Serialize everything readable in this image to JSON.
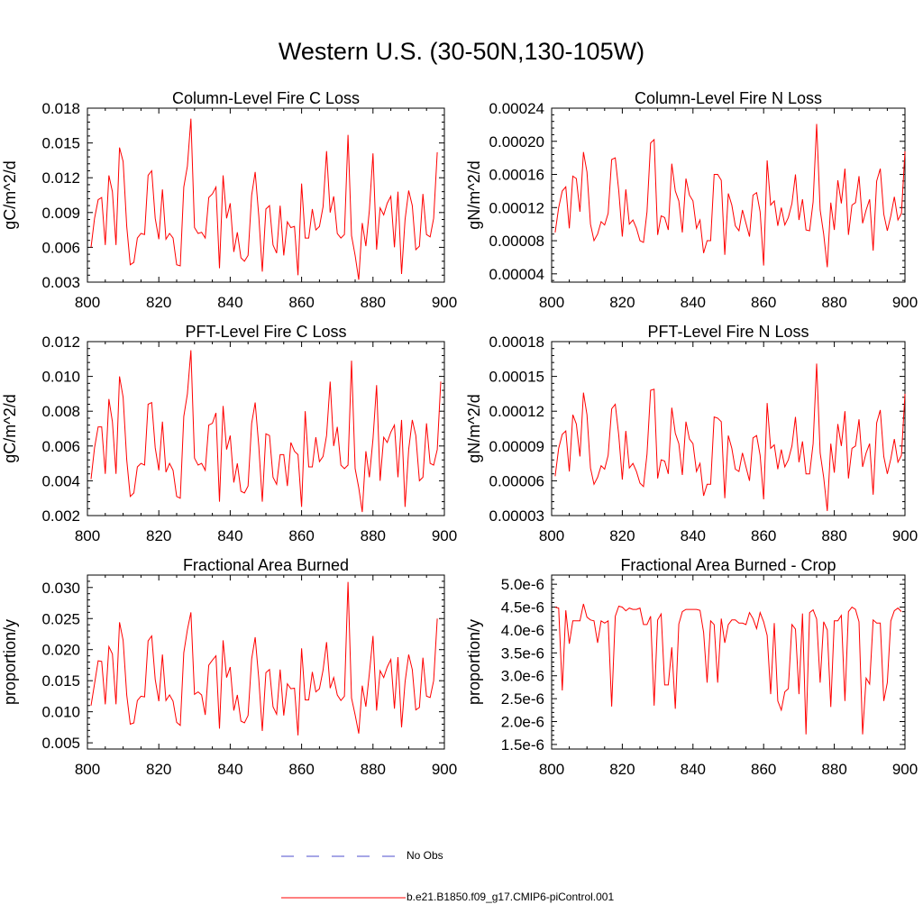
{
  "page_title": "Western U.S. (30-50N,130-105W)",
  "legend": {
    "obs_label": "No Obs",
    "obs_color": "#4d4dcc",
    "model_label": "b.e21.B1850.f09_g17.CMIP6-piControl.001",
    "model_color": "#ff0000"
  },
  "chart_data": [
    {
      "type": "line",
      "title": "Column-Level Fire C Loss",
      "xlabel": "",
      "ylabel": "gC/m^2/d",
      "xlim": [
        800,
        900
      ],
      "ylim": [
        0.003,
        0.018
      ],
      "xticks": [
        "800",
        "820",
        "840",
        "860",
        "880",
        "900"
      ],
      "yticks": [
        "0.003",
        "0.006",
        "0.009",
        "0.012",
        "0.015",
        "0.018"
      ],
      "x_start": 801,
      "series": [
        {
          "name": "b.e21.B1850.f09_g17.CMIP6-piControl.001",
          "values": [
            0.006,
            0.0085,
            0.0101,
            0.0103,
            0.0062,
            0.0122,
            0.0108,
            0.0062,
            0.0146,
            0.0134,
            0.0078,
            0.0045,
            0.0047,
            0.0068,
            0.0072,
            0.0071,
            0.0122,
            0.0126,
            0.0085,
            0.0067,
            0.011,
            0.0067,
            0.0072,
            0.0068,
            0.0045,
            0.0044,
            0.0112,
            0.013,
            0.0171,
            0.0077,
            0.0072,
            0.0073,
            0.0068,
            0.0103,
            0.0106,
            0.0112,
            0.0042,
            0.0122,
            0.0085,
            0.0098,
            0.0056,
            0.0073,
            0.0051,
            0.0048,
            0.0053,
            0.0105,
            0.0125,
            0.0087,
            0.0039,
            0.0093,
            0.0096,
            0.0062,
            0.0055,
            0.0096,
            0.0053,
            0.0082,
            0.0077,
            0.0078,
            0.0036,
            0.0115,
            0.0068,
            0.0068,
            0.0093,
            0.0075,
            0.0078,
            0.0095,
            0.0143,
            0.009,
            0.0104,
            0.0072,
            0.0068,
            0.0071,
            0.0157,
            0.007,
            0.0053,
            0.0032,
            0.0081,
            0.0061,
            0.0092,
            0.0141,
            0.0058,
            0.0094,
            0.0088,
            0.0098,
            0.0104,
            0.006,
            0.0108,
            0.0037,
            0.0084,
            0.0109,
            0.0096,
            0.0058,
            0.0061,
            0.0106,
            0.0071,
            0.0069,
            0.0085,
            0.0142
          ]
        }
      ]
    },
    {
      "type": "line",
      "title": "Column-Level Fire N Loss",
      "xlabel": "",
      "ylabel": "gN/m^2/d",
      "xlim": [
        800,
        900
      ],
      "ylim": [
        3e-05,
        0.00024
      ],
      "xticks": [
        "800",
        "820",
        "840",
        "860",
        "880",
        "900"
      ],
      "yticks": [
        "0.00004",
        "0.00008",
        "0.00012",
        "0.00016",
        "0.00020",
        "0.00024"
      ],
      "x_start": 801,
      "series": [
        {
          "name": "b.e21.B1850.f09_g17.CMIP6-piControl.001",
          "values": [
            9e-05,
            0.00012,
            0.00014,
            0.000145,
            9.5e-05,
            0.000158,
            0.000155,
            0.000115,
            0.000187,
            0.000163,
            0.0001,
            8e-05,
            8.8e-05,
            0.000103,
            9.9e-05,
            0.000113,
            0.000178,
            0.00018,
            0.00014,
            8.5e-05,
            0.000142,
            0.0001,
            0.000105,
            9.5e-05,
            8e-05,
            7.8e-05,
            0.000115,
            0.000198,
            0.000202,
            8.7e-05,
            0.00011,
            0.000108,
            9.3e-05,
            0.000173,
            0.00014,
            0.000128,
            9e-05,
            0.000155,
            0.000135,
            0.000128,
            9.5e-05,
            0.000105,
            6.5e-05,
            8e-05,
            8e-05,
            0.00016,
            0.00016,
            0.000153,
            6.3e-05,
            0.000137,
            0.000123,
            9.8e-05,
            9.2e-05,
            0.000117,
            0.000101,
            8.5e-05,
            0.000135,
            0.000138,
            0.000115,
            5e-05,
            0.000177,
            0.000123,
            0.000128,
            9.8e-05,
            0.00012,
            9.9e-05,
            0.000108,
            0.000125,
            0.00016,
            0.000105,
            0.00013,
            9.3e-05,
            9.2e-05,
            0.000127,
            0.000221,
            0.000117,
            8.8e-05,
            4.8e-05,
            0.000126,
            9.3e-05,
            0.000153,
            0.000125,
            0.000167,
            8.7e-05,
            0.000123,
            0.000126,
            0.000158,
            0.000101,
            0.000117,
            0.00013,
            6.8e-05,
            0.000152,
            0.000167,
            0.000112,
            9.2e-05,
            0.00011,
            0.000133,
            0.000105,
            0.000113,
            0.000188
          ]
        }
      ]
    },
    {
      "type": "line",
      "title": "PFT-Level Fire C Loss",
      "xlabel": "",
      "ylabel": "gC/m^2/d",
      "xlim": [
        800,
        900
      ],
      "ylim": [
        0.002,
        0.012
      ],
      "xticks": [
        "800",
        "820",
        "840",
        "860",
        "880",
        "900"
      ],
      "yticks": [
        "0.002",
        "0.004",
        "0.006",
        "0.008",
        "0.010",
        "0.012"
      ],
      "x_start": 801,
      "series": [
        {
          "name": "b.e21.B1850.f09_g17.CMIP6-piControl.001",
          "values": [
            0.0041,
            0.0059,
            0.0071,
            0.0071,
            0.0044,
            0.0087,
            0.0074,
            0.0044,
            0.01,
            0.0088,
            0.0052,
            0.0031,
            0.0033,
            0.0048,
            0.005,
            0.0049,
            0.0084,
            0.0085,
            0.0059,
            0.0046,
            0.0074,
            0.0045,
            0.005,
            0.0046,
            0.0031,
            0.003,
            0.0077,
            0.009,
            0.0115,
            0.0053,
            0.0049,
            0.005,
            0.0046,
            0.0072,
            0.0073,
            0.0079,
            0.0028,
            0.0083,
            0.0058,
            0.0066,
            0.0039,
            0.005,
            0.0034,
            0.0033,
            0.0037,
            0.0073,
            0.0085,
            0.006,
            0.0028,
            0.0067,
            0.0066,
            0.0042,
            0.0038,
            0.0055,
            0.0055,
            0.0037,
            0.0062,
            0.0057,
            0.0055,
            0.0025,
            0.008,
            0.0048,
            0.0048,
            0.0065,
            0.0051,
            0.0054,
            0.0066,
            0.0097,
            0.006,
            0.0071,
            0.0049,
            0.0047,
            0.0049,
            0.0109,
            0.0047,
            0.0036,
            0.0022,
            0.0057,
            0.0042,
            0.0064,
            0.0095,
            0.004,
            0.0065,
            0.0062,
            0.0068,
            0.0072,
            0.0042,
            0.0075,
            0.0025,
            0.0058,
            0.0075,
            0.0066,
            0.004,
            0.0042,
            0.0073,
            0.005,
            0.0049,
            0.0058,
            0.0097
          ]
        }
      ]
    },
    {
      "type": "line",
      "title": "PFT-Level Fire N Loss",
      "xlabel": "",
      "ylabel": "gN/m^2/d",
      "xlim": [
        800,
        900
      ],
      "ylim": [
        3e-05,
        0.00018
      ],
      "xticks": [
        "800",
        "820",
        "840",
        "860",
        "880",
        "900"
      ],
      "yticks": [
        "0.00003",
        "0.00006",
        "0.00009",
        "0.00012",
        "0.00015",
        "0.00018"
      ],
      "x_start": 801,
      "series": [
        {
          "name": "b.e21.B1850.f09_g17.CMIP6-piControl.001",
          "values": [
            6.4e-05,
            8.8e-05,
            0.0001,
            0.000103,
            6.8e-05,
            0.000117,
            0.000109,
            8.1e-05,
            0.000136,
            0.000117,
            7.1e-05,
            5.7e-05,
            6.3e-05,
            7.3e-05,
            7e-05,
            8.2e-05,
            0.000122,
            0.000126,
            9.9e-05,
            6.1e-05,
            0.000103,
            7.1e-05,
            7.5e-05,
            6.8e-05,
            5.8e-05,
            5.5e-05,
            8.3e-05,
            0.000138,
            0.000139,
            6.2e-05,
            7.8e-05,
            7.7e-05,
            6.6e-05,
            0.000123,
            0.000101,
            9.2e-05,
            6.5e-05,
            0.000111,
            9.6e-05,
            9.2e-05,
            6.8e-05,
            7.5e-05,
            4.7e-05,
            5.7e-05,
            5.7e-05,
            0.000115,
            0.000114,
            0.000111,
            4.5e-05,
            9.9e-05,
            8.8e-05,
            7e-05,
            6.8e-05,
            8.4e-05,
            7.2e-05,
            6e-05,
            9.7e-05,
            9.9e-05,
            8.2e-05,
            4.4e-05,
            0.000127,
            8.8e-05,
            9.1e-05,
            7e-05,
            8.7e-05,
            7.2e-05,
            7.8e-05,
            9e-05,
            0.000115,
            7.6e-05,
            9.4e-05,
            6.6e-05,
            6.6e-05,
            9.2e-05,
            0.000161,
            8.4e-05,
            6.3e-05,
            3.4e-05,
            9.2e-05,
            6.7e-05,
            0.000109,
            9e-05,
            0.00012,
            6.2e-05,
            8.8e-05,
            9e-05,
            0.000113,
            7.2e-05,
            8.4e-05,
            9.2e-05,
            4.8e-05,
            0.00011,
            0.000121,
            8.1e-05,
            6.6e-05,
            7.9e-05,
            9.6e-05,
            7.6e-05,
            8.2e-05,
            0.000135
          ]
        }
      ]
    },
    {
      "type": "line",
      "title": "Fractional Area Burned",
      "xlabel": "",
      "ylabel": "proportion/y",
      "xlim": [
        800,
        900
      ],
      "ylim": [
        0.004,
        0.032
      ],
      "xticks": [
        "800",
        "820",
        "840",
        "860",
        "880",
        "900"
      ],
      "yticks": [
        "0.005",
        "0.010",
        "0.015",
        "0.020",
        "0.025",
        "0.030"
      ],
      "x_start": 801,
      "series": [
        {
          "name": "b.e21.B1850.f09_g17.CMIP6-piControl.001",
          "values": [
            0.011,
            0.0145,
            0.0182,
            0.0181,
            0.0112,
            0.0205,
            0.0193,
            0.0112,
            0.0244,
            0.0215,
            0.0127,
            0.008,
            0.0082,
            0.0118,
            0.0125,
            0.0124,
            0.0214,
            0.0222,
            0.0152,
            0.0117,
            0.0192,
            0.0118,
            0.0127,
            0.0117,
            0.0083,
            0.0078,
            0.0195,
            0.0232,
            0.026,
            0.0128,
            0.0132,
            0.0127,
            0.0095,
            0.0175,
            0.0183,
            0.019,
            0.0073,
            0.0215,
            0.0155,
            0.0172,
            0.0102,
            0.0127,
            0.0085,
            0.0082,
            0.0094,
            0.0185,
            0.022,
            0.0153,
            0.0069,
            0.0163,
            0.0168,
            0.0108,
            0.0096,
            0.0168,
            0.0094,
            0.0145,
            0.0137,
            0.0138,
            0.0062,
            0.0202,
            0.0119,
            0.0119,
            0.0164,
            0.0132,
            0.0137,
            0.0167,
            0.0212,
            0.0138,
            0.0155,
            0.0127,
            0.0118,
            0.0125,
            0.0309,
            0.0122,
            0.0095,
            0.0065,
            0.0142,
            0.0108,
            0.0162,
            0.0222,
            0.0102,
            0.0166,
            0.0155,
            0.0172,
            0.0184,
            0.0105,
            0.0188,
            0.0075,
            0.0148,
            0.0192,
            0.0168,
            0.0103,
            0.0107,
            0.0187,
            0.0125,
            0.0123,
            0.015,
            0.025
          ]
        }
      ]
    },
    {
      "type": "line",
      "title": "Fractional Area Burned - Crop",
      "xlabel": "",
      "ylabel": "proportion/y",
      "xlim": [
        800,
        900
      ],
      "ylim": [
        1.4e-06,
        5.2e-06
      ],
      "xticks": [
        "800",
        "820",
        "840",
        "860",
        "880",
        "900"
      ],
      "yticks": [
        "1.5e-6",
        "2.0e-6",
        "2.5e-6",
        "3.0e-6",
        "3.5e-6",
        "4.0e-6",
        "4.5e-6",
        "5.0e-6"
      ],
      "x_start": 801,
      "series": [
        {
          "name": "b.e21.B1850.f09_g17.CMIP6-piControl.001",
          "values": [
            4.5e-06,
            4.48e-06,
            2.68e-06,
            4.43e-06,
            3.7e-06,
            4.2e-06,
            4.2e-06,
            4.2e-06,
            4.57e-06,
            4.28e-06,
            4.22e-06,
            4.2e-06,
            3.72e-06,
            4.2e-06,
            4.15e-06,
            4.2e-06,
            2.33e-06,
            4.3e-06,
            4.52e-06,
            4.5e-06,
            4.42e-06,
            4.48e-06,
            4.45e-06,
            4.45e-06,
            4.48e-06,
            4.12e-06,
            4.12e-06,
            4.3e-06,
            2.35e-06,
            4.22e-06,
            4.35e-06,
            2.8e-06,
            2.8e-06,
            3.62e-06,
            2.28e-06,
            4.13e-06,
            4.4e-06,
            4.45e-06,
            4.45e-06,
            4.45e-06,
            4.45e-06,
            4.43e-06,
            3.95e-06,
            2.85e-06,
            4.2e-06,
            4.12e-06,
            2.85e-06,
            4.25e-06,
            3.72e-06,
            4.12e-06,
            4.22e-06,
            4.22e-06,
            4.15e-06,
            4.15e-06,
            4.12e-06,
            4.38e-06,
            4.25e-06,
            4.03e-06,
            4.38e-06,
            4.18e-06,
            3.88e-06,
            2.6e-06,
            4.15e-06,
            2.45e-06,
            2.25e-06,
            2.65e-06,
            2.72e-06,
            4.12e-06,
            4.02e-06,
            2.6e-06,
            4.36e-06,
            1.72e-06,
            4.38e-06,
            4.44e-06,
            4.24e-06,
            2.85e-06,
            4.18e-06,
            4e-06,
            2.32e-06,
            4.2e-06,
            4.2e-06,
            4.32e-06,
            2.45e-06,
            4.4e-06,
            4.5e-06,
            4.45e-06,
            4.18e-06,
            1.72e-06,
            2.95e-06,
            2.82e-06,
            4.22e-06,
            4.15e-06,
            4.15e-06,
            2.45e-06,
            2.85e-06,
            4.2e-06,
            4.42e-06,
            4.48e-06,
            4.4e-06
          ]
        }
      ]
    }
  ]
}
